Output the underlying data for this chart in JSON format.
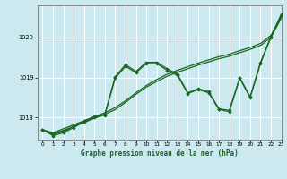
{
  "title": "Graphe pression niveau de la mer (hPa)",
  "bg_color": "#cce9f0",
  "grid_color": "#ffffff",
  "line_color": "#1a6620",
  "xlim": [
    -0.5,
    23
  ],
  "ylim": [
    1017.45,
    1020.8
  ],
  "yticks": [
    1018,
    1019,
    1020
  ],
  "xticks": [
    0,
    1,
    2,
    3,
    4,
    5,
    6,
    7,
    8,
    9,
    10,
    11,
    12,
    13,
    14,
    15,
    16,
    17,
    18,
    19,
    20,
    21,
    22,
    23
  ],
  "series_smooth1": {
    "x": [
      0,
      1,
      2,
      3,
      4,
      5,
      6,
      7,
      8,
      9,
      10,
      11,
      12,
      13,
      14,
      15,
      16,
      17,
      18,
      19,
      20,
      21,
      22,
      23
    ],
    "y": [
      1017.7,
      1017.62,
      1017.72,
      1017.82,
      1017.92,
      1018.02,
      1018.12,
      1018.25,
      1018.42,
      1018.62,
      1018.8,
      1018.95,
      1019.08,
      1019.18,
      1019.27,
      1019.36,
      1019.44,
      1019.52,
      1019.58,
      1019.67,
      1019.75,
      1019.85,
      1020.05,
      1020.52
    ]
  },
  "series_smooth2": {
    "x": [
      0,
      1,
      2,
      3,
      4,
      5,
      6,
      7,
      8,
      9,
      10,
      11,
      12,
      13,
      14,
      15,
      16,
      17,
      18,
      19,
      20,
      21,
      22,
      23
    ],
    "y": [
      1017.7,
      1017.6,
      1017.68,
      1017.78,
      1017.88,
      1017.98,
      1018.08,
      1018.2,
      1018.38,
      1018.58,
      1018.76,
      1018.9,
      1019.03,
      1019.13,
      1019.22,
      1019.31,
      1019.39,
      1019.47,
      1019.53,
      1019.62,
      1019.7,
      1019.8,
      1020.0,
      1020.48
    ]
  },
  "series_marker1": {
    "x": [
      0,
      1,
      2,
      3,
      4,
      5,
      6,
      7,
      8,
      9,
      10,
      11,
      12,
      13,
      14,
      15,
      16,
      17,
      18,
      19,
      20,
      21,
      22,
      23
    ],
    "y": [
      1017.7,
      1017.58,
      1017.65,
      1017.78,
      1017.92,
      1018.02,
      1018.08,
      1019.02,
      1019.32,
      1019.15,
      1019.38,
      1019.38,
      1019.22,
      1019.08,
      1018.62,
      1018.72,
      1018.65,
      1018.22,
      1018.18,
      1019.0,
      1018.52,
      1019.38,
      1020.02,
      1020.58
    ]
  },
  "series_marker2": {
    "x": [
      0,
      1,
      2,
      3,
      4,
      5,
      6,
      7,
      8,
      9,
      10,
      11,
      12,
      13,
      14,
      15,
      16,
      17,
      18,
      19,
      20,
      21,
      22,
      23
    ],
    "y": [
      1017.7,
      1017.55,
      1017.62,
      1017.75,
      1017.9,
      1018.0,
      1018.06,
      1018.98,
      1019.28,
      1019.12,
      1019.35,
      1019.35,
      1019.18,
      1019.05,
      1018.6,
      1018.7,
      1018.62,
      1018.2,
      1018.15,
      1018.98,
      1018.5,
      1019.35,
      1020.0,
      1020.55
    ]
  }
}
